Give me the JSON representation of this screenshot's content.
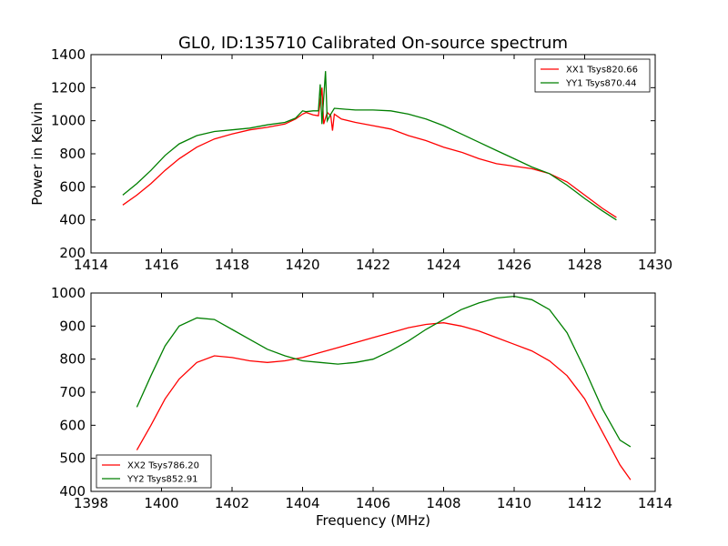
{
  "chart_data": [
    {
      "type": "line",
      "title": "GL0, ID:135710 Calibrated On-source spectrum",
      "ylabel": "Power in Kelvin",
      "xlabel": "",
      "xlim": [
        1414,
        1430
      ],
      "ylim": [
        200,
        1400
      ],
      "xticks": [
        1414,
        1416,
        1418,
        1420,
        1422,
        1424,
        1426,
        1428,
        1430
      ],
      "yticks": [
        200,
        400,
        600,
        800,
        1000,
        1200,
        1400
      ],
      "grid": false,
      "legend_position": "top-right",
      "series": [
        {
          "name": "XX1 Tsys820.66",
          "color": "#ff0000",
          "points": [
            [
              1414.9,
              490
            ],
            [
              1415.3,
              550
            ],
            [
              1415.7,
              620
            ],
            [
              1416.1,
              700
            ],
            [
              1416.5,
              770
            ],
            [
              1417.0,
              840
            ],
            [
              1417.5,
              890
            ],
            [
              1418.0,
              920
            ],
            [
              1418.5,
              945
            ],
            [
              1419.0,
              960
            ],
            [
              1419.5,
              980
            ],
            [
              1419.8,
              1010
            ],
            [
              1420.0,
              1040
            ],
            [
              1420.1,
              1050
            ],
            [
              1420.3,
              1035
            ],
            [
              1420.45,
              1030
            ],
            [
              1420.55,
              1200
            ],
            [
              1420.6,
              980
            ],
            [
              1420.7,
              1050
            ],
            [
              1420.8,
              1030
            ],
            [
              1420.85,
              940
            ],
            [
              1420.9,
              1040
            ],
            [
              1421.1,
              1010
            ],
            [
              1421.5,
              990
            ],
            [
              1422.0,
              970
            ],
            [
              1422.5,
              950
            ],
            [
              1423.0,
              910
            ],
            [
              1423.5,
              880
            ],
            [
              1424.0,
              840
            ],
            [
              1424.5,
              810
            ],
            [
              1425.0,
              770
            ],
            [
              1425.5,
              740
            ],
            [
              1426.0,
              725
            ],
            [
              1426.5,
              710
            ],
            [
              1427.0,
              680
            ],
            [
              1427.5,
              630
            ],
            [
              1428.0,
              550
            ],
            [
              1428.5,
              470
            ],
            [
              1428.9,
              415
            ]
          ]
        },
        {
          "name": "YY1 Tsys870.44",
          "color": "#007f00",
          "points": [
            [
              1414.9,
              550
            ],
            [
              1415.3,
              620
            ],
            [
              1415.7,
              700
            ],
            [
              1416.1,
              790
            ],
            [
              1416.5,
              860
            ],
            [
              1417.0,
              910
            ],
            [
              1417.5,
              935
            ],
            [
              1418.0,
              945
            ],
            [
              1418.5,
              955
            ],
            [
              1419.0,
              975
            ],
            [
              1419.5,
              990
            ],
            [
              1419.8,
              1015
            ],
            [
              1420.0,
              1060
            ],
            [
              1420.1,
              1055
            ],
            [
              1420.3,
              1060
            ],
            [
              1420.45,
              1060
            ],
            [
              1420.5,
              1220
            ],
            [
              1420.55,
              980
            ],
            [
              1420.65,
              1300
            ],
            [
              1420.7,
              1000
            ],
            [
              1420.8,
              1040
            ],
            [
              1420.9,
              1075
            ],
            [
              1421.2,
              1070
            ],
            [
              1421.5,
              1065
            ],
            [
              1422.0,
              1065
            ],
            [
              1422.5,
              1060
            ],
            [
              1423.0,
              1040
            ],
            [
              1423.5,
              1010
            ],
            [
              1424.0,
              970
            ],
            [
              1424.5,
              920
            ],
            [
              1425.0,
              870
            ],
            [
              1425.5,
              820
            ],
            [
              1426.0,
              770
            ],
            [
              1426.5,
              720
            ],
            [
              1427.0,
              680
            ],
            [
              1427.5,
              610
            ],
            [
              1428.0,
              530
            ],
            [
              1428.5,
              455
            ],
            [
              1428.9,
              400
            ]
          ]
        }
      ]
    },
    {
      "type": "line",
      "title": "",
      "ylabel": "",
      "xlabel": "Frequency (MHz)",
      "xlim": [
        1398,
        1414
      ],
      "ylim": [
        400,
        1000
      ],
      "xticks": [
        1398,
        1400,
        1402,
        1404,
        1406,
        1408,
        1410,
        1412,
        1414
      ],
      "yticks": [
        400,
        500,
        600,
        700,
        800,
        900,
        1000
      ],
      "grid": false,
      "legend_position": "bottom-left",
      "series": [
        {
          "name": "XX2 Tsys786.20",
          "color": "#ff0000",
          "points": [
            [
              1399.3,
              525
            ],
            [
              1399.7,
              600
            ],
            [
              1400.1,
              680
            ],
            [
              1400.5,
              740
            ],
            [
              1401.0,
              790
            ],
            [
              1401.5,
              810
            ],
            [
              1402.0,
              805
            ],
            [
              1402.5,
              795
            ],
            [
              1403.0,
              790
            ],
            [
              1403.5,
              795
            ],
            [
              1404.0,
              805
            ],
            [
              1404.5,
              820
            ],
            [
              1405.0,
              835
            ],
            [
              1405.5,
              850
            ],
            [
              1406.0,
              865
            ],
            [
              1406.5,
              880
            ],
            [
              1407.0,
              895
            ],
            [
              1407.5,
              905
            ],
            [
              1408.0,
              910
            ],
            [
              1408.5,
              900
            ],
            [
              1409.0,
              885
            ],
            [
              1409.5,
              865
            ],
            [
              1410.0,
              845
            ],
            [
              1410.5,
              825
            ],
            [
              1411.0,
              795
            ],
            [
              1411.5,
              750
            ],
            [
              1412.0,
              680
            ],
            [
              1412.5,
              580
            ],
            [
              1413.0,
              480
            ],
            [
              1413.3,
              435
            ]
          ]
        },
        {
          "name": "YY2 Tsys852.91",
          "color": "#007f00",
          "points": [
            [
              1399.3,
              655
            ],
            [
              1399.7,
              750
            ],
            [
              1400.1,
              840
            ],
            [
              1400.5,
              900
            ],
            [
              1401.0,
              925
            ],
            [
              1401.5,
              920
            ],
            [
              1402.0,
              890
            ],
            [
              1402.5,
              860
            ],
            [
              1403.0,
              830
            ],
            [
              1403.5,
              810
            ],
            [
              1404.0,
              795
            ],
            [
              1404.5,
              790
            ],
            [
              1405.0,
              785
            ],
            [
              1405.5,
              790
            ],
            [
              1406.0,
              800
            ],
            [
              1406.5,
              825
            ],
            [
              1407.0,
              855
            ],
            [
              1407.5,
              890
            ],
            [
              1408.0,
              920
            ],
            [
              1408.5,
              950
            ],
            [
              1409.0,
              970
            ],
            [
              1409.5,
              985
            ],
            [
              1410.0,
              990
            ],
            [
              1410.5,
              980
            ],
            [
              1411.0,
              950
            ],
            [
              1411.5,
              880
            ],
            [
              1412.0,
              770
            ],
            [
              1412.5,
              650
            ],
            [
              1413.0,
              555
            ],
            [
              1413.3,
              535
            ]
          ]
        }
      ]
    }
  ]
}
